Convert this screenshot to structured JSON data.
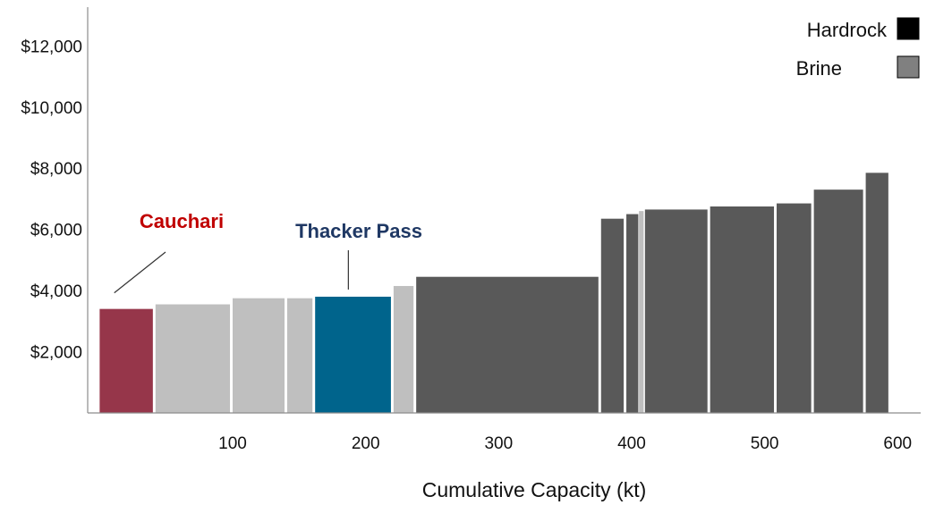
{
  "chart_data": {
    "type": "bar",
    "subtype": "cost-curve (variable-width bars)",
    "title": "",
    "xlabel": "Cumulative Capacity (kt)",
    "ylabel": "",
    "xlim": [
      -9,
      620
    ],
    "ylim": [
      0,
      13500
    ],
    "x_ticks": [
      100,
      200,
      300,
      400,
      500,
      600
    ],
    "y_ticks": [
      2000,
      4000,
      6000,
      8000,
      10000,
      12000
    ],
    "y_tick_labels": [
      "$2,000",
      "$4,000",
      "$6,000",
      "$8,000",
      "$10,000",
      "$12,000"
    ],
    "grid": false,
    "legend_position": "top-right",
    "legend": [
      {
        "label": "Hardrock",
        "color": "#000000"
      },
      {
        "label": "Brine",
        "color": "#808080"
      }
    ],
    "colors": {
      "cauchari": "#96364a",
      "thacker_pass": "#00648c",
      "brine_bar": "#bfbfbf",
      "hardrock_bar": "#595959",
      "cauchari_label": "#c00000",
      "thacker_label": "#1f3864"
    },
    "annotations": [
      {
        "text": "Cauchari",
        "target_x": 11
      },
      {
        "text": "Thacker Pass",
        "target_x": 187
      }
    ],
    "bars": [
      {
        "x0": 0,
        "x1": 40,
        "value": 3400,
        "category": "Cauchari"
      },
      {
        "x0": 42,
        "x1": 98,
        "value": 3550,
        "category": "Brine"
      },
      {
        "x0": 100,
        "x1": 139,
        "value": 3750,
        "category": "Brine"
      },
      {
        "x0": 141,
        "x1": 160,
        "value": 3750,
        "category": "Brine"
      },
      {
        "x0": 162,
        "x1": 219,
        "value": 3800,
        "category": "Thacker Pass"
      },
      {
        "x0": 221,
        "x1": 236,
        "value": 4150,
        "category": "Brine"
      },
      {
        "x0": 238,
        "x1": 375,
        "value": 4450,
        "category": "Hardrock"
      },
      {
        "x0": 377,
        "x1": 394,
        "value": 6350,
        "category": "Hardrock"
      },
      {
        "x0": 396,
        "x1": 405,
        "value": 6500,
        "category": "Hardrock"
      },
      {
        "x0": 405.5,
        "x1": 409,
        "value": 6600,
        "category": "Brine"
      },
      {
        "x0": 410,
        "x1": 457,
        "value": 6650,
        "category": "Hardrock"
      },
      {
        "x0": 459,
        "x1": 507,
        "value": 6750,
        "category": "Hardrock"
      },
      {
        "x0": 509,
        "x1": 535,
        "value": 6850,
        "category": "Hardrock"
      },
      {
        "x0": 537,
        "x1": 574,
        "value": 7300,
        "category": "Hardrock"
      },
      {
        "x0": 576,
        "x1": 593,
        "value": 7850,
        "category": "Hardrock"
      }
    ]
  }
}
